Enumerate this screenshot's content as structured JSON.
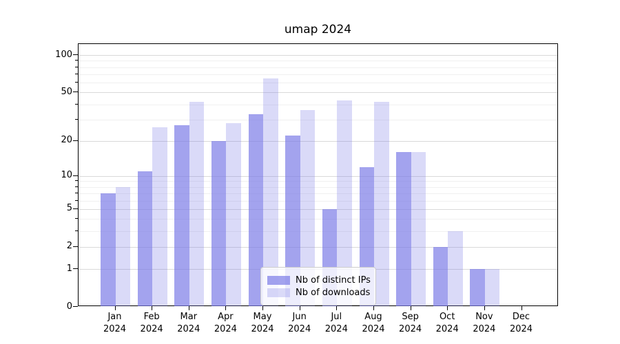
{
  "title": "umap 2024",
  "colors": {
    "bar_base": "rgba(120,120,230,0.68)",
    "bar_base_light": "rgba(120,120,230,0.27)",
    "ips_hex": "#a3a3ef",
    "downloads_hex": "#dadaf8",
    "grid_major": "#d9d9d9",
    "grid_minor": "#f0f0f0",
    "axis": "#000000"
  },
  "legend": {
    "items": [
      {
        "label": "Nb of distinct IPs",
        "series": "ips"
      },
      {
        "label": "Nb of downloads",
        "series": "downloads"
      }
    ],
    "position": "lower center"
  },
  "y_axis": {
    "scale": "log1p",
    "major_ticks": [
      100,
      50,
      20,
      10,
      5,
      2,
      1,
      0
    ],
    "minor_ticks": [
      3,
      4,
      6,
      7,
      8,
      9,
      30,
      40,
      60,
      70,
      80,
      90
    ]
  },
  "x_axis": {
    "tick_labels_line1": [
      "Jan",
      "Feb",
      "Mar",
      "Apr",
      "May",
      "Jun",
      "Jul",
      "Aug",
      "Sep",
      "Oct",
      "Nov",
      "Dec"
    ],
    "tick_labels_line2": [
      "2024",
      "2024",
      "2024",
      "2024",
      "2024",
      "2024",
      "2024",
      "2024",
      "2024",
      "2024",
      "2024",
      "2024"
    ]
  },
  "chart_data": {
    "type": "bar",
    "title": "umap 2024",
    "categories": [
      "Jan 2024",
      "Feb 2024",
      "Mar 2024",
      "Apr 2024",
      "May 2024",
      "Jun 2024",
      "Jul 2024",
      "Aug 2024",
      "Sep 2024",
      "Oct 2024",
      "Nov 2024",
      "Dec 2024"
    ],
    "series": [
      {
        "name": "Nb of distinct IPs",
        "values": [
          7,
          11,
          27,
          20,
          33,
          22,
          5,
          12,
          16,
          2,
          1,
          0
        ]
      },
      {
        "name": "Nb of downloads",
        "values": [
          8,
          26,
          42,
          28,
          65,
          36,
          43,
          42,
          16,
          3,
          1,
          0
        ]
      }
    ],
    "xlabel": "",
    "ylabel": "",
    "yscale": "log1p",
    "ylim": [
      0,
      122
    ],
    "y_major_ticks": [
      0,
      1,
      2,
      5,
      10,
      20,
      50,
      100
    ],
    "grid": true,
    "legend_position": "lower center"
  }
}
